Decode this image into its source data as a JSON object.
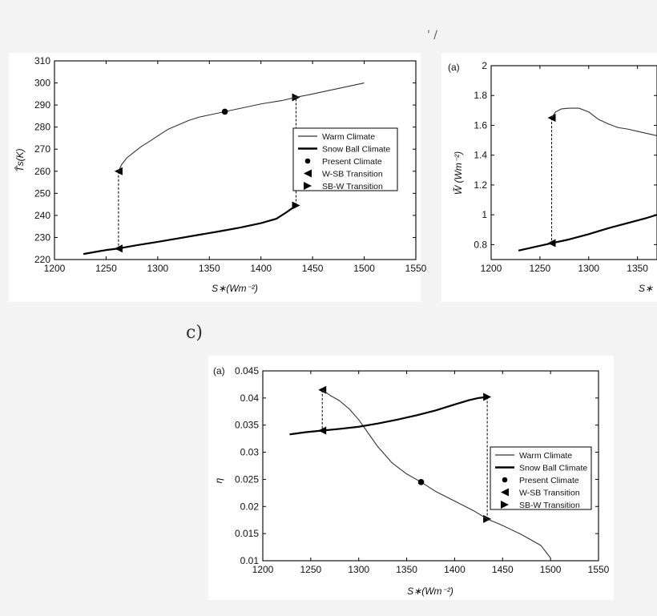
{
  "top_mark": "' /",
  "panel_c_label": "c)",
  "legend": {
    "warm": "Warm Climate",
    "snowball": "Snow Ball Climate",
    "present": "Present Climate",
    "wsb": "W-SB Transition",
    "sbw": "SB-W Transition"
  },
  "chart_data": [
    {
      "id": "temperature",
      "type": "line",
      "panel_label": "",
      "title": "",
      "xlabel": "S∗(Wm⁻²)",
      "ylabel": "T̂s(K)",
      "xlim": [
        1200,
        1550
      ],
      "ylim": [
        220,
        310
      ],
      "xticks": [
        1200,
        1250,
        1300,
        1350,
        1400,
        1450,
        1500,
        1550
      ],
      "yticks": [
        220,
        230,
        240,
        250,
        260,
        270,
        280,
        290,
        300,
        310
      ],
      "series": [
        {
          "name": "Warm Climate",
          "x": [
            1262,
            1265,
            1270,
            1278,
            1285,
            1292,
            1300,
            1310,
            1320,
            1330,
            1340,
            1350,
            1365,
            1380,
            1400,
            1420,
            1434,
            1450,
            1470,
            1500
          ],
          "y": [
            260,
            263,
            266,
            269,
            271.5,
            273.5,
            276,
            279,
            281,
            283,
            284.5,
            285.5,
            287,
            288.5,
            290.5,
            292,
            293.5,
            295,
            297,
            300
          ]
        },
        {
          "name": "Snow Ball Climate",
          "x": [
            1228,
            1240,
            1250,
            1262,
            1280,
            1300,
            1320,
            1340,
            1360,
            1380,
            1400,
            1415,
            1425,
            1434
          ],
          "y": [
            222.5,
            223.5,
            224.3,
            225,
            226.5,
            228,
            229.6,
            231.2,
            232.8,
            234.5,
            236.5,
            238.5,
            241.5,
            244.5
          ]
        }
      ],
      "present": {
        "x": 1365,
        "y": 287
      },
      "wsb": {
        "x": 1262,
        "y_from": 260,
        "y_to": 225
      },
      "sbw": {
        "x": 1434,
        "y_from": 244.5,
        "y_to": 293.5
      }
    },
    {
      "id": "water",
      "type": "line",
      "panel_label": "(a)",
      "title": "",
      "xlabel": "S∗",
      "ylabel": "W̃ (Wm⁻²)",
      "xlim": [
        1200,
        1370
      ],
      "ylim": [
        0.7,
        2
      ],
      "xticks": [
        1200,
        1250,
        1300,
        1350
      ],
      "yticks": [
        0.8,
        1,
        1.2,
        1.4,
        1.6,
        1.8,
        2
      ],
      "series": [
        {
          "name": "Warm Climate",
          "x": [
            1262,
            1266,
            1272,
            1280,
            1290,
            1300,
            1310,
            1320,
            1330,
            1340,
            1350,
            1360,
            1370
          ],
          "y": [
            1.65,
            1.69,
            1.71,
            1.715,
            1.715,
            1.69,
            1.64,
            1.61,
            1.585,
            1.575,
            1.56,
            1.545,
            1.53
          ]
        },
        {
          "name": "Snow Ball Climate",
          "x": [
            1228,
            1245,
            1262,
            1280,
            1300,
            1320,
            1340,
            1360,
            1370
          ],
          "y": [
            0.76,
            0.785,
            0.81,
            0.835,
            0.87,
            0.91,
            0.945,
            0.98,
            1.0
          ]
        }
      ],
      "wsb": {
        "x": 1262,
        "y_from": 1.65,
        "y_to": 0.81
      }
    },
    {
      "id": "eta",
      "type": "line",
      "panel_label": "(a)",
      "title": "",
      "xlabel": "S∗(Wm⁻²)",
      "ylabel": "η",
      "xlim": [
        1200,
        1550
      ],
      "ylim": [
        0.01,
        0.045
      ],
      "xticks": [
        1200,
        1250,
        1300,
        1350,
        1400,
        1450,
        1500,
        1550
      ],
      "yticks": [
        0.01,
        0.015,
        0.02,
        0.025,
        0.03,
        0.035,
        0.04,
        0.045
      ],
      "series": [
        {
          "name": "Warm Climate",
          "x": [
            1262,
            1270,
            1280,
            1290,
            1300,
            1310,
            1320,
            1335,
            1350,
            1365,
            1380,
            1400,
            1420,
            1434,
            1450,
            1470,
            1490,
            1500
          ],
          "y": [
            0.0415,
            0.0405,
            0.0395,
            0.038,
            0.036,
            0.0335,
            0.031,
            0.028,
            0.026,
            0.0245,
            0.0228,
            0.021,
            0.0192,
            0.0177,
            0.0165,
            0.0148,
            0.0128,
            0.0105
          ]
        },
        {
          "name": "Snow Ball Climate",
          "x": [
            1228,
            1245,
            1262,
            1280,
            1300,
            1320,
            1340,
            1360,
            1380,
            1400,
            1415,
            1425,
            1434
          ],
          "y": [
            0.0333,
            0.0337,
            0.034,
            0.0343,
            0.0347,
            0.0353,
            0.036,
            0.0368,
            0.0377,
            0.0388,
            0.0396,
            0.04,
            0.0402
          ]
        }
      ],
      "present": {
        "x": 1365,
        "y": 0.0245
      },
      "wsb": {
        "x": 1262,
        "y_from": 0.0415,
        "y_to": 0.034
      },
      "sbw": {
        "x": 1434,
        "y_from": 0.0402,
        "y_to": 0.0177
      }
    }
  ]
}
